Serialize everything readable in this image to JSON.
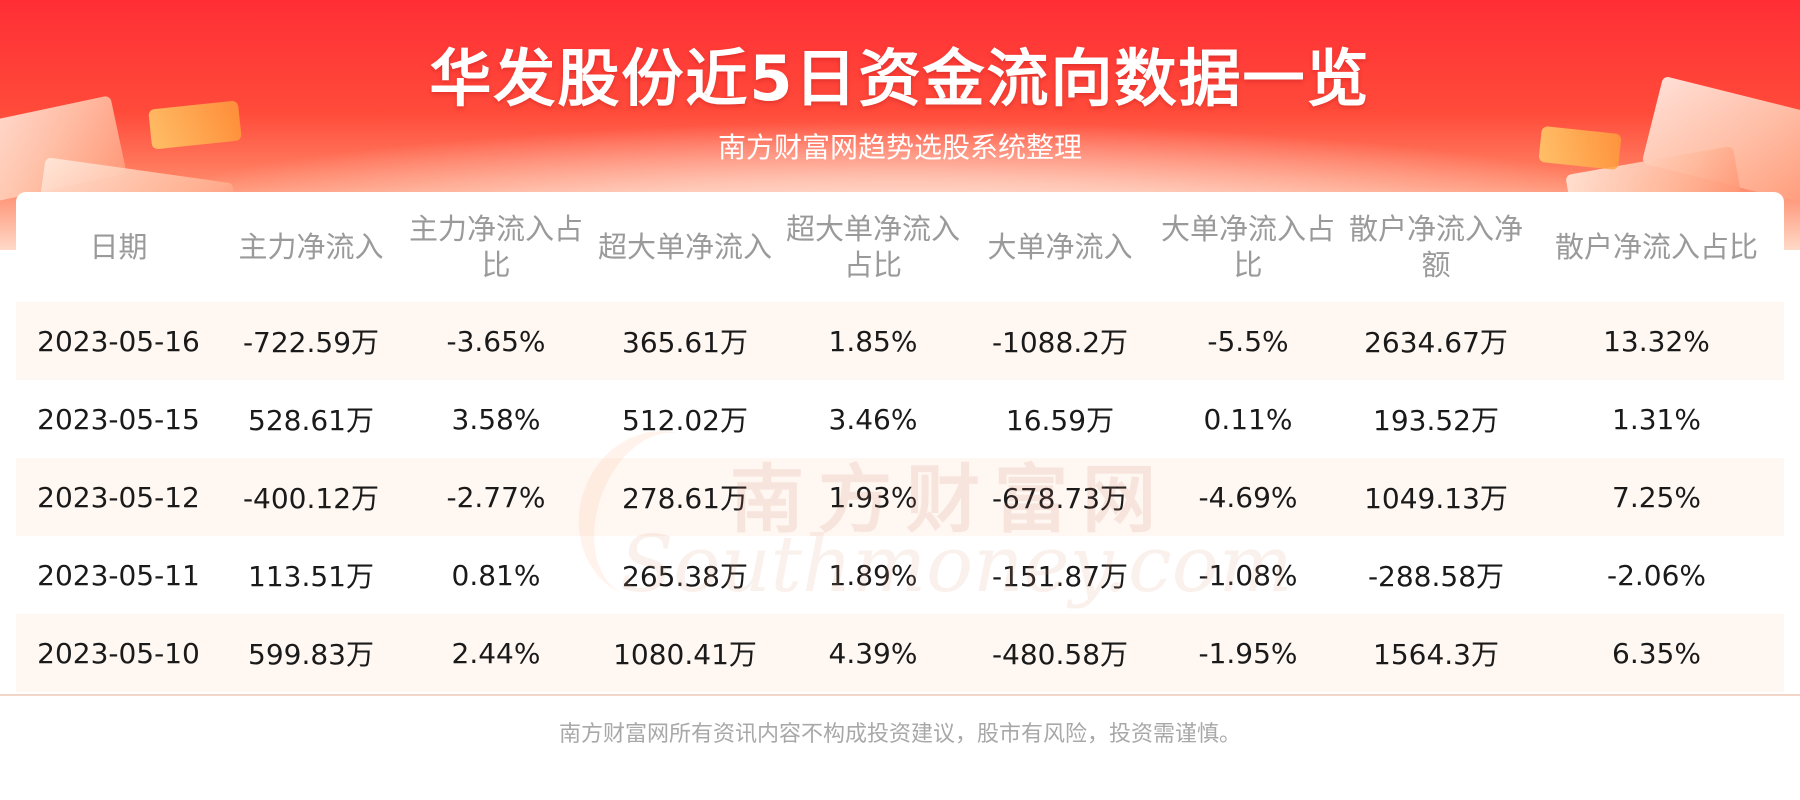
{
  "header": {
    "title": "华发股份近5日资金流向数据一览",
    "subtitle": "南方财富网趋势选股系统整理"
  },
  "watermark": {
    "cn": "南方财富网",
    "en": "Southmoney.com"
  },
  "table": {
    "columns": [
      "日期",
      "主力净流入",
      "主力净流入占比",
      "超大单净流入",
      "超大单净流入占比",
      "大单净流入",
      "大单净流入占比",
      "散户净流入净额",
      "散户净流入占比"
    ],
    "rows": [
      [
        "2023-05-16",
        "-722.59万",
        "-3.65%",
        "365.61万",
        "1.85%",
        "-1088.2万",
        "-5.5%",
        "2634.67万",
        "13.32%"
      ],
      [
        "2023-05-15",
        "528.61万",
        "3.58%",
        "512.02万",
        "3.46%",
        "16.59万",
        "0.11%",
        "193.52万",
        "1.31%"
      ],
      [
        "2023-05-12",
        "-400.12万",
        "-2.77%",
        "278.61万",
        "1.93%",
        "-678.73万",
        "-4.69%",
        "1049.13万",
        "7.25%"
      ],
      [
        "2023-05-11",
        "113.51万",
        "0.81%",
        "265.38万",
        "1.89%",
        "-151.87万",
        "-1.08%",
        "-288.58万",
        "-2.06%"
      ],
      [
        "2023-05-10",
        "599.83万",
        "2.44%",
        "1080.41万",
        "4.39%",
        "-480.58万",
        "-1.95%",
        "1564.3万",
        "6.35%"
      ]
    ]
  },
  "footer": {
    "disclaimer": "南方财富网所有资讯内容不构成投资建议，股市有风险，投资需谨慎。"
  },
  "colors": {
    "banner_red": "#ff2e35",
    "row_stripe": "#fff7f1",
    "header_text": "#9a9a9a"
  }
}
